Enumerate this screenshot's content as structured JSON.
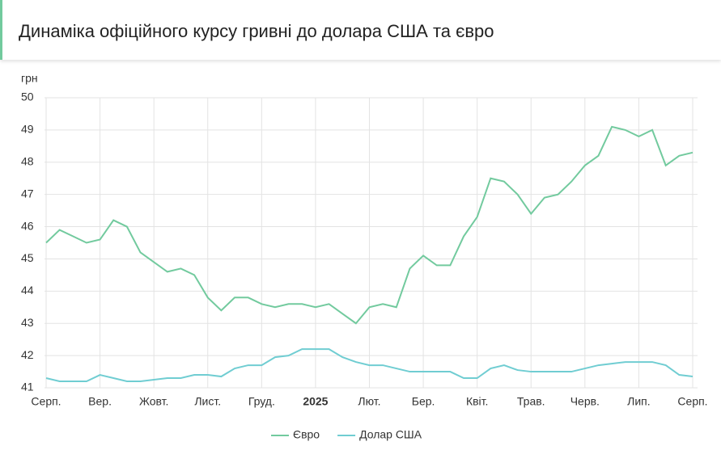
{
  "title": "Динаміка офіційного курсу гривні до долара США та євро",
  "chart_data": {
    "type": "line",
    "y_label": "грн",
    "categories": [
      "Серп.",
      null,
      null,
      null,
      "Вер.",
      null,
      null,
      null,
      "Жовт.",
      null,
      null,
      null,
      "Лист.",
      null,
      null,
      null,
      "Груд.",
      null,
      null,
      null,
      "2025",
      null,
      null,
      null,
      "Лют.",
      null,
      null,
      null,
      "Бер.",
      null,
      null,
      null,
      "Квіт.",
      null,
      null,
      null,
      "Трав.",
      null,
      null,
      null,
      "Черв.",
      null,
      null,
      null,
      "Лип.",
      null,
      null,
      null,
      "Серп."
    ],
    "series": [
      {
        "name": "Євро",
        "color": "#72ca9e",
        "values": [
          45.5,
          45.9,
          45.7,
          45.5,
          45.6,
          46.2,
          46.0,
          45.2,
          44.9,
          44.6,
          44.7,
          44.5,
          43.8,
          43.4,
          43.8,
          43.8,
          43.6,
          43.5,
          43.6,
          43.6,
          43.5,
          43.6,
          43.3,
          43.0,
          43.5,
          43.6,
          43.5,
          44.7,
          45.1,
          44.8,
          44.8,
          45.7,
          46.3,
          47.5,
          47.4,
          47.0,
          46.4,
          46.9,
          47.0,
          47.4,
          47.9,
          48.2,
          49.1,
          49.0,
          48.8,
          49.0,
          47.9,
          48.2,
          48.3
        ]
      },
      {
        "name": "Долар США",
        "color": "#70cdd2",
        "values": [
          41.3,
          41.2,
          41.2,
          41.2,
          41.4,
          41.3,
          41.2,
          41.2,
          41.25,
          41.3,
          41.3,
          41.4,
          41.4,
          41.35,
          41.6,
          41.7,
          41.7,
          41.95,
          42.0,
          42.2,
          42.2,
          42.2,
          41.95,
          41.8,
          41.7,
          41.7,
          41.6,
          41.5,
          41.5,
          41.5,
          41.5,
          41.3,
          41.3,
          41.6,
          41.7,
          41.55,
          41.5,
          41.5,
          41.5,
          41.5,
          41.6,
          41.7,
          41.75,
          41.8,
          41.8,
          41.8,
          41.7,
          41.4,
          41.35
        ]
      }
    ],
    "ylim": [
      41,
      50
    ],
    "yticks": [
      41,
      42,
      43,
      44,
      45,
      46,
      47,
      48,
      49,
      50
    ],
    "grid": true,
    "legend": "bottom"
  }
}
